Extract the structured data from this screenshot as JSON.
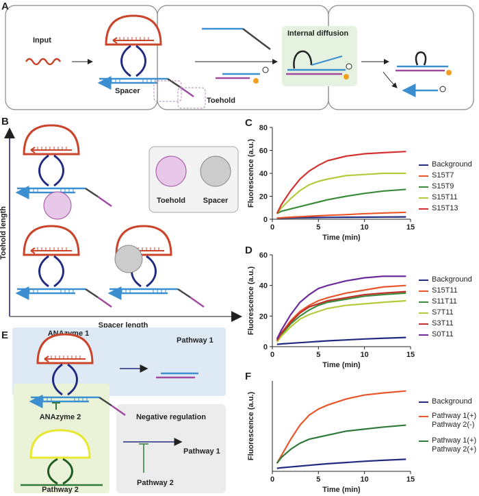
{
  "panel_a": {
    "label": "A",
    "input": "Input",
    "internal_diffusion": "Internal diffusion",
    "spacer": "Spacer",
    "toehold": "Toehold"
  },
  "panel_b": {
    "label": "B",
    "y_axis": "Toehold length",
    "x_axis": "Spacer length",
    "legend_toehold": "Toehold",
    "legend_spacer": "Spacer"
  },
  "panel_e": {
    "label": "E",
    "anazyme1": "ANAzyme 1",
    "pathway1": "Pathway 1",
    "anazyme2": "ANAzyme 2",
    "pathway2": "Pathway 2",
    "negative_regulation": "Negative regulation",
    "reg_pathway1": "Pathway 1",
    "reg_pathway2": "Pathway 2"
  },
  "chart_data": [
    {
      "type": "line",
      "panel": "C",
      "xlabel": "Time (min)",
      "ylabel": "Fluorescence (a.u.)",
      "xlim": [
        0,
        15
      ],
      "xticks": [
        0,
        5,
        10,
        15
      ],
      "ylim": [
        0,
        80
      ],
      "yticks": [
        0,
        20,
        40,
        60,
        80
      ],
      "x": [
        0.5,
        1,
        2,
        3,
        4,
        5,
        6,
        8,
        10,
        12,
        14.5
      ],
      "series": [
        {
          "name": "Background",
          "color": "#1f2a80",
          "values": [
            1,
            1,
            1.2,
            1.3,
            1.4,
            1.5,
            1.6,
            1.7,
            1.8,
            1.9,
            2
          ]
        },
        {
          "name": "S15T7",
          "color": "#e8552a",
          "values": [
            1,
            1.3,
            1.8,
            2.2,
            2.6,
            3,
            3.4,
            4,
            4.8,
            5.4,
            6
          ]
        },
        {
          "name": "S15T9",
          "color": "#3a8a3a",
          "values": [
            5,
            7,
            9,
            11,
            13,
            15,
            17,
            20,
            22.5,
            24.5,
            26
          ]
        },
        {
          "name": "S15T11",
          "color": "#b5c93a",
          "values": [
            5,
            10,
            18,
            25,
            30,
            33,
            35,
            38,
            39,
            40,
            40
          ]
        },
        {
          "name": "S15T13",
          "color": "#d43030",
          "values": [
            5,
            13,
            25,
            35,
            42,
            47,
            51,
            55,
            57,
            58,
            59
          ]
        }
      ]
    },
    {
      "type": "line",
      "panel": "D",
      "xlabel": "Time (min)",
      "ylabel": "Fluorescence (a.u.)",
      "xlim": [
        0,
        15
      ],
      "xticks": [
        0,
        5,
        10,
        15
      ],
      "ylim": [
        0,
        60
      ],
      "yticks": [
        0,
        20,
        40,
        60
      ],
      "x": [
        0.5,
        1,
        2,
        3,
        4,
        5,
        6,
        8,
        10,
        12,
        14.5
      ],
      "series": [
        {
          "name": "Background",
          "color": "#1f2a80",
          "values": [
            1.5,
            1.8,
            2.2,
            2.6,
            3,
            3.4,
            3.8,
            4.4,
            5,
            5.5,
            6
          ]
        },
        {
          "name": "S15T11",
          "color": "#e8552a",
          "values": [
            4,
            9,
            17,
            23,
            27,
            30,
            32,
            35,
            37,
            39,
            40
          ]
        },
        {
          "name": "S11T11",
          "color": "#3a8a3a",
          "values": [
            4,
            8,
            15,
            20,
            24,
            27,
            29,
            31,
            33,
            34,
            35
          ]
        },
        {
          "name": "S7T11",
          "color": "#b5c93a",
          "values": [
            3,
            7,
            13,
            18,
            21,
            23,
            25,
            27,
            28,
            29,
            30
          ]
        },
        {
          "name": "S3T11",
          "color": "#c0302a",
          "values": [
            4,
            9,
            16,
            22,
            26,
            28,
            30,
            32,
            34,
            35,
            36
          ]
        },
        {
          "name": "S0T11",
          "color": "#6a2a9a",
          "values": [
            5,
            11,
            21,
            29,
            34,
            38,
            40,
            43,
            45,
            46,
            46
          ]
        }
      ]
    },
    {
      "type": "line",
      "panel": "F",
      "xlabel": "Time (min)",
      "ylabel": "Fluorescence (a.u.)",
      "xlim": [
        0,
        15
      ],
      "xticks": [
        0,
        5,
        10,
        15
      ],
      "ylim": [
        0,
        45
      ],
      "x": [
        0.5,
        1,
        2,
        3,
        4,
        5,
        6,
        8,
        10,
        12,
        14.5
      ],
      "series": [
        {
          "name": "Background",
          "color": "#1f2a80",
          "values": [
            1.5,
            1.8,
            2.2,
            2.6,
            3,
            3.4,
            3.8,
            4.4,
            5,
            5.5,
            6
          ]
        },
        {
          "name": "Pathway 1(+) Pathway 2(-)",
          "color": "#e8552a",
          "values": [
            4,
            8,
            16,
            23,
            28,
            31,
            33,
            36,
            38,
            39,
            40
          ]
        },
        {
          "name": "Pathway 1(+) Pathway 2(+)",
          "color": "#2f7a3a",
          "values": [
            4,
            7,
            11,
            14,
            16,
            17,
            18,
            20,
            21,
            22,
            23
          ]
        }
      ]
    }
  ]
}
